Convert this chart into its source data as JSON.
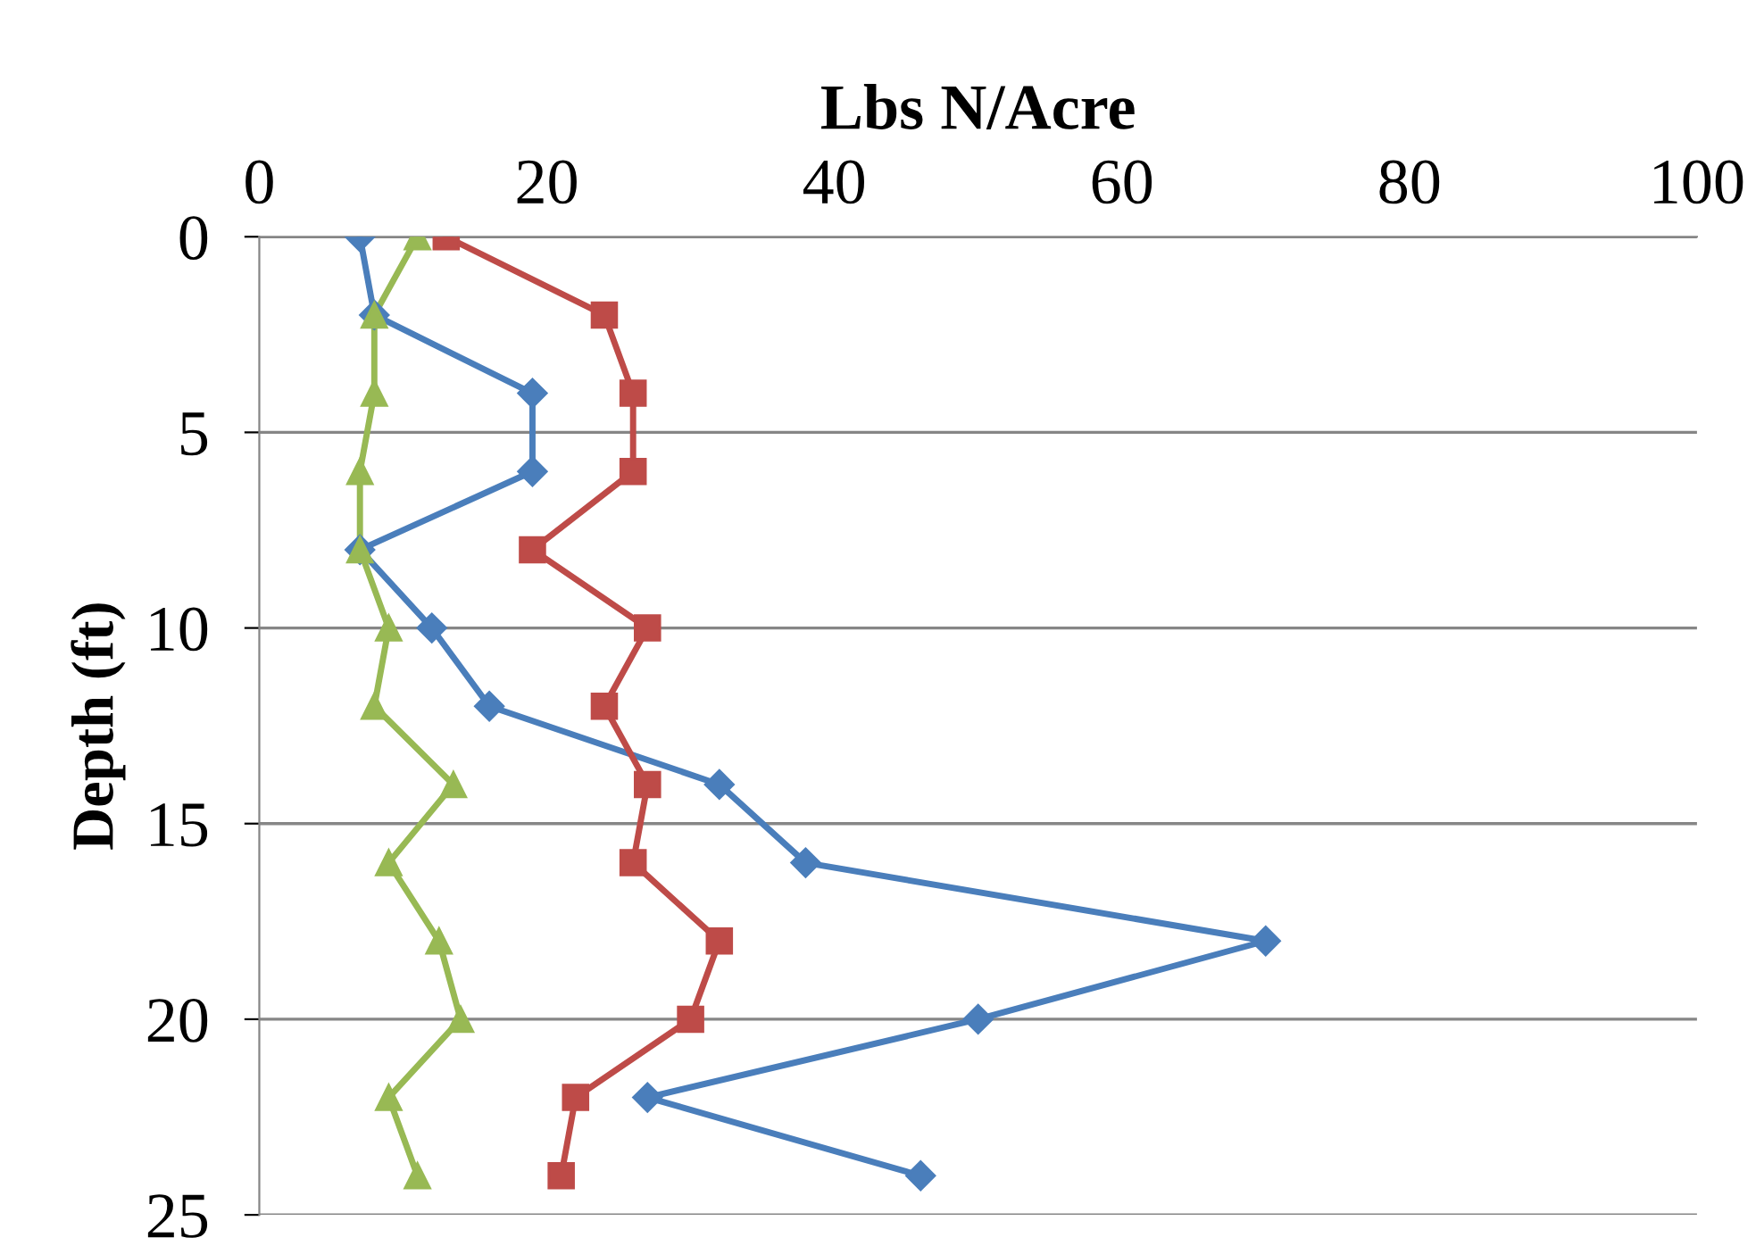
{
  "chart_data": {
    "type": "line",
    "xlabel": "Lbs N/Acre",
    "ylabel": "Depth (ft)",
    "xlim": [
      0,
      100
    ],
    "xticks": [
      0,
      20,
      40,
      60,
      80,
      100
    ],
    "ylim": [
      25,
      0
    ],
    "yticks": [
      0,
      5,
      10,
      15,
      20,
      25
    ],
    "grid": "y",
    "line_style": "solid",
    "series": [
      {
        "color": "#4a7ebb",
        "marker": "diamond",
        "x": [
          7,
          8,
          19,
          19,
          7,
          12,
          16,
          32,
          38,
          70,
          50,
          27,
          46
        ],
        "values": [
          0,
          2,
          4,
          6,
          8,
          10,
          12,
          14,
          16,
          18,
          20,
          22,
          24
        ]
      },
      {
        "color": "#be4b48",
        "marker": "square",
        "x": [
          13,
          24,
          26,
          26,
          19,
          27,
          24,
          27,
          26,
          32,
          30,
          22,
          21
        ],
        "values": [
          0,
          2,
          4,
          6,
          8,
          10,
          12,
          14,
          16,
          18,
          20,
          22,
          24
        ]
      },
      {
        "color": "#98b954",
        "marker": "triangle",
        "x": [
          11,
          8,
          8,
          7,
          7,
          9,
          8,
          13.5,
          9,
          12.5,
          14,
          9,
          11
        ],
        "values": [
          0,
          2,
          4,
          6,
          8,
          10,
          12,
          14,
          16,
          18,
          20,
          22,
          24
        ]
      }
    ]
  }
}
